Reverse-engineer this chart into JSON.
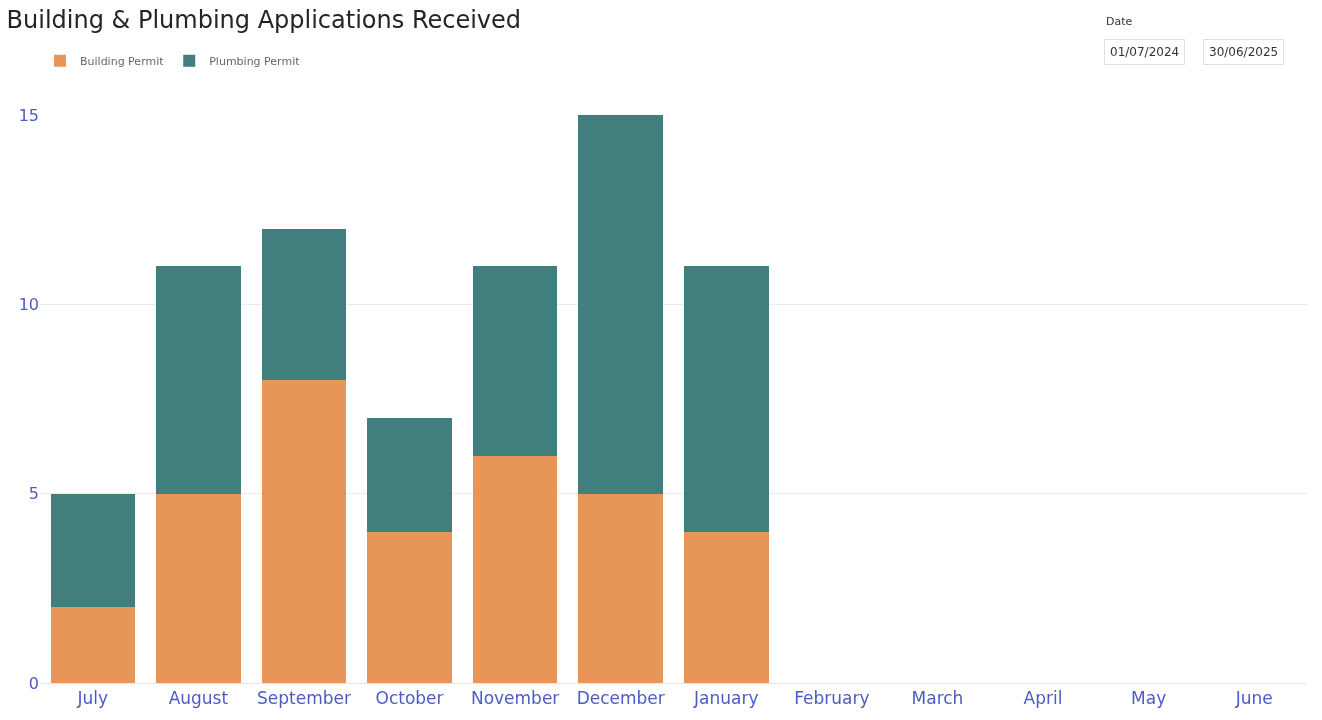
{
  "chart_data": {
    "type": "bar",
    "title": "Building & Plumbing Applications Received",
    "categories": [
      "July",
      "August",
      "September",
      "October",
      "November",
      "December",
      "January",
      "February",
      "March",
      "April",
      "May",
      "June"
    ],
    "series": [
      {
        "name": "Building Permit",
        "color": "#e8955a",
        "values": [
          2,
          5,
          8,
          4,
          6,
          5,
          4,
          null,
          null,
          null,
          null,
          null
        ]
      },
      {
        "name": "Plumbing Permit",
        "color": "#417e7e",
        "values": [
          3,
          6,
          4,
          3,
          5,
          10,
          7,
          null,
          null,
          null,
          null,
          null
        ]
      }
    ],
    "stacked": true,
    "ylim": [
      0,
      15
    ],
    "yticks": [
      0,
      5,
      10,
      15
    ],
    "grid": "y",
    "legend": "top left",
    "annotations": [
      "Date",
      "01/07/2024",
      "30/06/2025"
    ]
  }
}
